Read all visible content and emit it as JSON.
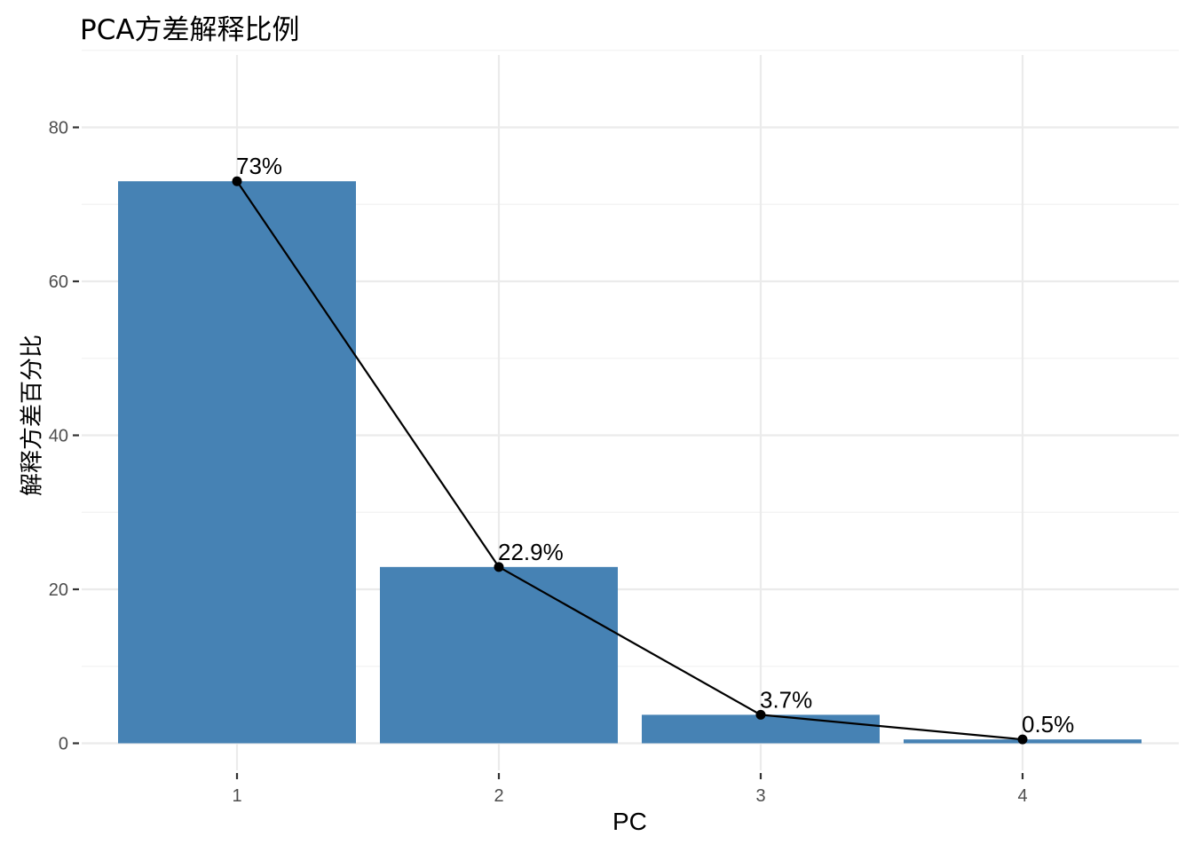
{
  "chart_data": {
    "type": "bar",
    "title": "PCA方差解释比例",
    "xlabel": "PC",
    "ylabel": "解释方差百分比",
    "categories": [
      "1",
      "2",
      "3",
      "4"
    ],
    "values": [
      73.0,
      22.9,
      3.7,
      0.5
    ],
    "data_labels": [
      "73%",
      "22.9%",
      "3.7%",
      "0.5%"
    ],
    "line_overlay": true,
    "ylim": [
      0,
      90
    ],
    "yticks": [
      0,
      20,
      40,
      60,
      80
    ],
    "ytick_labels": [
      "0",
      "20",
      "40",
      "60",
      "80"
    ],
    "grid": true,
    "legend": "none",
    "colors": {
      "bar": "#4682B4",
      "line": "#000000",
      "grid": "#EBEBEB",
      "tick_text": "#4D4D4D"
    }
  }
}
